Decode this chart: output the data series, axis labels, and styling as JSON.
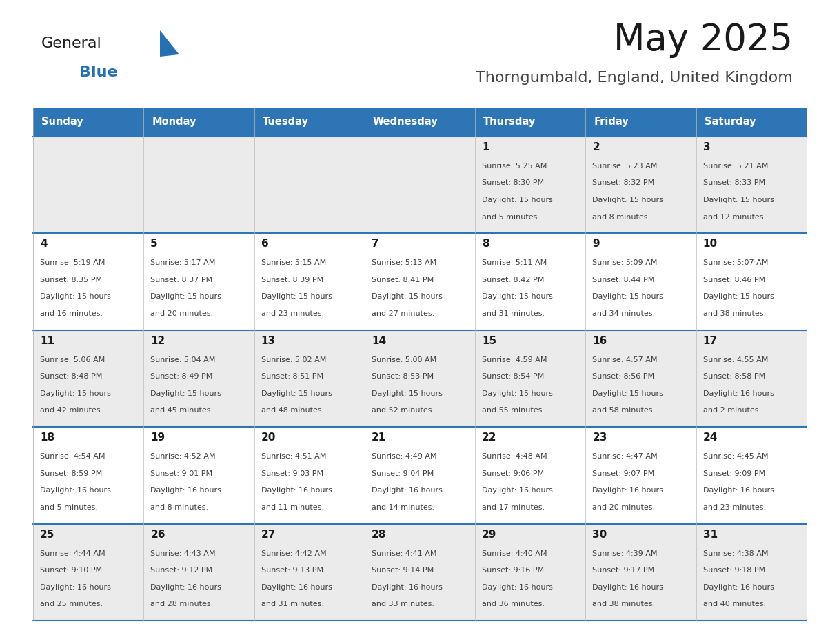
{
  "title": "May 2025",
  "subtitle": "Thorngumbald, England, United Kingdom",
  "days_of_week": [
    "Sunday",
    "Monday",
    "Tuesday",
    "Wednesday",
    "Thursday",
    "Friday",
    "Saturday"
  ],
  "header_bg": "#2E75B6",
  "header_text": "#FFFFFF",
  "row1_bg": "#EBEBEB",
  "row2_bg": "#FFFFFF",
  "border_color": "#2E75B6",
  "day_num_color": "#1a1a1a",
  "text_color": "#404040",
  "title_color": "#1a1a1a",
  "subtitle_color": "#444444",
  "logo_black": "#1a1a1a",
  "logo_blue": "#2472B3",
  "calendar_data": [
    [
      {
        "day": "",
        "sunrise": "",
        "sunset": "",
        "daylight": ""
      },
      {
        "day": "",
        "sunrise": "",
        "sunset": "",
        "daylight": ""
      },
      {
        "day": "",
        "sunrise": "",
        "sunset": "",
        "daylight": ""
      },
      {
        "day": "",
        "sunrise": "",
        "sunset": "",
        "daylight": ""
      },
      {
        "day": "1",
        "sunrise": "5:25 AM",
        "sunset": "8:30 PM",
        "daylight": "15 hours\nand 5 minutes."
      },
      {
        "day": "2",
        "sunrise": "5:23 AM",
        "sunset": "8:32 PM",
        "daylight": "15 hours\nand 8 minutes."
      },
      {
        "day": "3",
        "sunrise": "5:21 AM",
        "sunset": "8:33 PM",
        "daylight": "15 hours\nand 12 minutes."
      }
    ],
    [
      {
        "day": "4",
        "sunrise": "5:19 AM",
        "sunset": "8:35 PM",
        "daylight": "15 hours\nand 16 minutes."
      },
      {
        "day": "5",
        "sunrise": "5:17 AM",
        "sunset": "8:37 PM",
        "daylight": "15 hours\nand 20 minutes."
      },
      {
        "day": "6",
        "sunrise": "5:15 AM",
        "sunset": "8:39 PM",
        "daylight": "15 hours\nand 23 minutes."
      },
      {
        "day": "7",
        "sunrise": "5:13 AM",
        "sunset": "8:41 PM",
        "daylight": "15 hours\nand 27 minutes."
      },
      {
        "day": "8",
        "sunrise": "5:11 AM",
        "sunset": "8:42 PM",
        "daylight": "15 hours\nand 31 minutes."
      },
      {
        "day": "9",
        "sunrise": "5:09 AM",
        "sunset": "8:44 PM",
        "daylight": "15 hours\nand 34 minutes."
      },
      {
        "day": "10",
        "sunrise": "5:07 AM",
        "sunset": "8:46 PM",
        "daylight": "15 hours\nand 38 minutes."
      }
    ],
    [
      {
        "day": "11",
        "sunrise": "5:06 AM",
        "sunset": "8:48 PM",
        "daylight": "15 hours\nand 42 minutes."
      },
      {
        "day": "12",
        "sunrise": "5:04 AM",
        "sunset": "8:49 PM",
        "daylight": "15 hours\nand 45 minutes."
      },
      {
        "day": "13",
        "sunrise": "5:02 AM",
        "sunset": "8:51 PM",
        "daylight": "15 hours\nand 48 minutes."
      },
      {
        "day": "14",
        "sunrise": "5:00 AM",
        "sunset": "8:53 PM",
        "daylight": "15 hours\nand 52 minutes."
      },
      {
        "day": "15",
        "sunrise": "4:59 AM",
        "sunset": "8:54 PM",
        "daylight": "15 hours\nand 55 minutes."
      },
      {
        "day": "16",
        "sunrise": "4:57 AM",
        "sunset": "8:56 PM",
        "daylight": "15 hours\nand 58 minutes."
      },
      {
        "day": "17",
        "sunrise": "4:55 AM",
        "sunset": "8:58 PM",
        "daylight": "16 hours\nand 2 minutes."
      }
    ],
    [
      {
        "day": "18",
        "sunrise": "4:54 AM",
        "sunset": "8:59 PM",
        "daylight": "16 hours\nand 5 minutes."
      },
      {
        "day": "19",
        "sunrise": "4:52 AM",
        "sunset": "9:01 PM",
        "daylight": "16 hours\nand 8 minutes."
      },
      {
        "day": "20",
        "sunrise": "4:51 AM",
        "sunset": "9:03 PM",
        "daylight": "16 hours\nand 11 minutes."
      },
      {
        "day": "21",
        "sunrise": "4:49 AM",
        "sunset": "9:04 PM",
        "daylight": "16 hours\nand 14 minutes."
      },
      {
        "day": "22",
        "sunrise": "4:48 AM",
        "sunset": "9:06 PM",
        "daylight": "16 hours\nand 17 minutes."
      },
      {
        "day": "23",
        "sunrise": "4:47 AM",
        "sunset": "9:07 PM",
        "daylight": "16 hours\nand 20 minutes."
      },
      {
        "day": "24",
        "sunrise": "4:45 AM",
        "sunset": "9:09 PM",
        "daylight": "16 hours\nand 23 minutes."
      }
    ],
    [
      {
        "day": "25",
        "sunrise": "4:44 AM",
        "sunset": "9:10 PM",
        "daylight": "16 hours\nand 25 minutes."
      },
      {
        "day": "26",
        "sunrise": "4:43 AM",
        "sunset": "9:12 PM",
        "daylight": "16 hours\nand 28 minutes."
      },
      {
        "day": "27",
        "sunrise": "4:42 AM",
        "sunset": "9:13 PM",
        "daylight": "16 hours\nand 31 minutes."
      },
      {
        "day": "28",
        "sunrise": "4:41 AM",
        "sunset": "9:14 PM",
        "daylight": "16 hours\nand 33 minutes."
      },
      {
        "day": "29",
        "sunrise": "4:40 AM",
        "sunset": "9:16 PM",
        "daylight": "16 hours\nand 36 minutes."
      },
      {
        "day": "30",
        "sunrise": "4:39 AM",
        "sunset": "9:17 PM",
        "daylight": "16 hours\nand 38 minutes."
      },
      {
        "day": "31",
        "sunrise": "4:38 AM",
        "sunset": "9:18 PM",
        "daylight": "16 hours\nand 40 minutes."
      }
    ]
  ]
}
